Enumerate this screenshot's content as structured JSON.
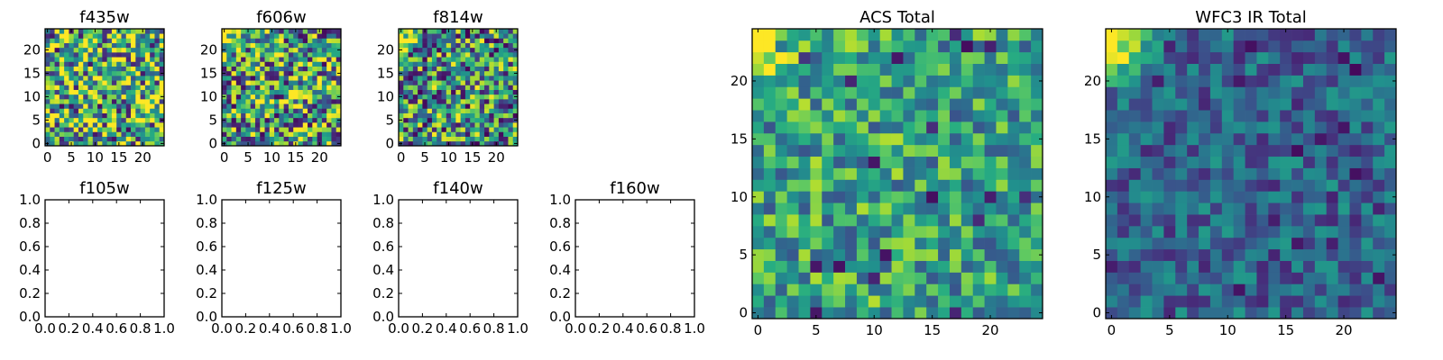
{
  "figure_title": "",
  "chart_data": [
    {
      "name": "f435w",
      "type": "heatmap",
      "title": "f435w",
      "grid_size": 25,
      "xlim": [
        -0.5,
        24.5
      ],
      "ylim": [
        -0.5,
        24.5
      ],
      "xticks": [
        0,
        5,
        10,
        15,
        20
      ],
      "xtick_labels": [
        "0",
        "5",
        "10",
        "15",
        "20"
      ],
      "yticks": [
        0,
        5,
        10,
        15,
        20
      ],
      "ytick_labels": [
        "0",
        "5",
        "10",
        "15",
        "20"
      ],
      "colormap": "viridis",
      "value_range": [
        0,
        1
      ],
      "pattern": "noisy",
      "pattern_seed": 11,
      "pattern_bias": 0.62,
      "pattern_spread": 0.55,
      "corner_glow": 0
    },
    {
      "name": "f606w",
      "type": "heatmap",
      "title": "f606w",
      "grid_size": 25,
      "xlim": [
        -0.5,
        24.5
      ],
      "ylim": [
        -0.5,
        24.5
      ],
      "xticks": [
        0,
        5,
        10,
        15,
        20
      ],
      "xtick_labels": [
        "0",
        "5",
        "10",
        "15",
        "20"
      ],
      "yticks": [
        0,
        5,
        10,
        15,
        20
      ],
      "ytick_labels": [
        "0",
        "5",
        "10",
        "15",
        "20"
      ],
      "colormap": "viridis",
      "value_range": [
        0,
        1
      ],
      "pattern": "noisy",
      "pattern_seed": 23,
      "pattern_bias": 0.58,
      "pattern_spread": 0.55,
      "corner_glow": 0.45
    },
    {
      "name": "f814w",
      "type": "heatmap",
      "title": "f814w",
      "grid_size": 25,
      "xlim": [
        -0.5,
        24.5
      ],
      "ylim": [
        -0.5,
        24.5
      ],
      "xticks": [
        0,
        5,
        10,
        15,
        20
      ],
      "xtick_labels": [
        "0",
        "5",
        "10",
        "15",
        "20"
      ],
      "yticks": [
        0,
        5,
        10,
        15,
        20
      ],
      "ytick_labels": [
        "0",
        "5",
        "10",
        "15",
        "20"
      ],
      "colormap": "viridis",
      "value_range": [
        0,
        1
      ],
      "pattern": "noisy",
      "pattern_seed": 37,
      "pattern_bias": 0.5,
      "pattern_spread": 0.5,
      "corner_glow": 0.5
    },
    {
      "name": "f105w",
      "type": "empty",
      "title": "f105w",
      "xlim": [
        0,
        1
      ],
      "ylim": [
        0,
        1
      ],
      "xticks": [
        0,
        0.2,
        0.4,
        0.6,
        0.8,
        1.0
      ],
      "xtick_labels": [
        "0.0",
        "0.2",
        "0.4",
        "0.6",
        "0.8",
        "1.0"
      ],
      "yticks": [
        0,
        0.2,
        0.4,
        0.6,
        0.8,
        1.0
      ],
      "ytick_labels": [
        "0.0",
        "0.2",
        "0.4",
        "0.6",
        "0.8",
        "1.0"
      ]
    },
    {
      "name": "f125w",
      "type": "empty",
      "title": "f125w",
      "xlim": [
        0,
        1
      ],
      "ylim": [
        0,
        1
      ],
      "xticks": [
        0,
        0.2,
        0.4,
        0.6,
        0.8,
        1.0
      ],
      "xtick_labels": [
        "0.0",
        "0.2",
        "0.4",
        "0.6",
        "0.8",
        "1.0"
      ],
      "yticks": [
        0,
        0.2,
        0.4,
        0.6,
        0.8,
        1.0
      ],
      "ytick_labels": [
        "0.0",
        "0.2",
        "0.4",
        "0.6",
        "0.8",
        "1.0"
      ]
    },
    {
      "name": "f140w",
      "type": "empty",
      "title": "f140w",
      "xlim": [
        0,
        1
      ],
      "ylim": [
        0,
        1
      ],
      "xticks": [
        0,
        0.2,
        0.4,
        0.6,
        0.8,
        1.0
      ],
      "xtick_labels": [
        "0.0",
        "0.2",
        "0.4",
        "0.6",
        "0.8",
        "1.0"
      ],
      "yticks": [
        0,
        0.2,
        0.4,
        0.6,
        0.8,
        1.0
      ],
      "ytick_labels": [
        "0.0",
        "0.2",
        "0.4",
        "0.6",
        "0.8",
        "1.0"
      ]
    },
    {
      "name": "f160w",
      "type": "empty",
      "title": "f160w",
      "xlim": [
        0,
        1
      ],
      "ylim": [
        0,
        1
      ],
      "xticks": [
        0,
        0.2,
        0.4,
        0.6,
        0.8,
        1.0
      ],
      "xtick_labels": [
        "0.0",
        "0.2",
        "0.4",
        "0.6",
        "0.8",
        "1.0"
      ],
      "yticks": [
        0,
        0.2,
        0.4,
        0.6,
        0.8,
        1.0
      ],
      "ytick_labels": [
        "0.0",
        "0.2",
        "0.4",
        "0.6",
        "0.8",
        "1.0"
      ]
    },
    {
      "name": "acs-total",
      "type": "heatmap",
      "title": "ACS Total",
      "grid_size": 25,
      "xlim": [
        -0.5,
        24.5
      ],
      "ylim": [
        -0.5,
        24.5
      ],
      "xticks": [
        0,
        5,
        10,
        15,
        20
      ],
      "xtick_labels": [
        "0",
        "5",
        "10",
        "15",
        "20"
      ],
      "yticks": [
        0,
        5,
        10,
        15,
        20
      ],
      "ytick_labels": [
        "0",
        "5",
        "10",
        "15",
        "20"
      ],
      "colormap": "viridis",
      "value_range": [
        0,
        1
      ],
      "pattern": "noisy",
      "pattern_seed": 53,
      "pattern_bias": 0.58,
      "pattern_spread": 0.32,
      "corner_glow": 0.55
    },
    {
      "name": "wfc3-ir-total",
      "type": "heatmap",
      "title": "WFC3 IR Total",
      "grid_size": 25,
      "xlim": [
        -0.5,
        24.5
      ],
      "ylim": [
        -0.5,
        24.5
      ],
      "xticks": [
        0,
        5,
        10,
        15,
        20
      ],
      "xtick_labels": [
        "0",
        "5",
        "10",
        "15",
        "20"
      ],
      "yticks": [
        0,
        5,
        10,
        15,
        20
      ],
      "ytick_labels": [
        "0",
        "5",
        "10",
        "15",
        "20"
      ],
      "colormap": "viridis",
      "value_range": [
        0,
        1
      ],
      "pattern": "noisy",
      "pattern_seed": 71,
      "pattern_bias": 0.33,
      "pattern_spread": 0.22,
      "corner_glow": 0.75
    }
  ]
}
